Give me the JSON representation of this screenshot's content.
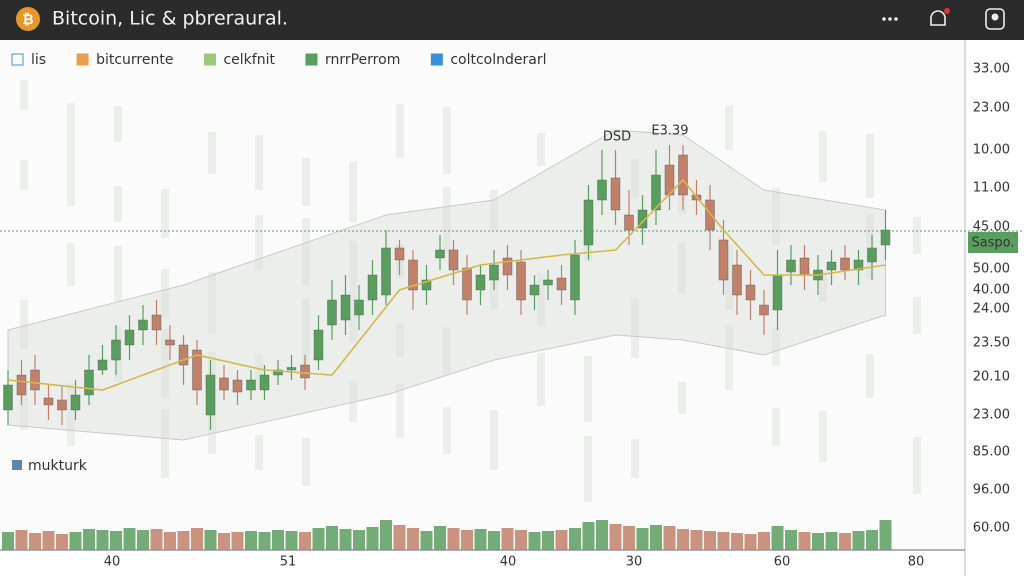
{
  "header": {
    "title": "Bitcoin, Lic & pbreraural."
  },
  "legend": [
    {
      "label": "lis",
      "color": "#4a90c8"
    },
    {
      "label": "bitcurrente",
      "color": "#e8a04a"
    },
    {
      "label": "celkfnit",
      "color": "#9cc87a"
    },
    {
      "label": "rnrrPerrom",
      "color": "#5a9e5f"
    },
    {
      "label": "coltcolnderarl",
      "color": "#3a8fd8"
    }
  ],
  "volume_legend": {
    "label": "mukturk",
    "color": "#5b87b0"
  },
  "price_labels": [
    "33.00",
    "23.00",
    "10.00",
    "11.00",
    "45.00",
    "50.00",
    "40.00",
    "24.00",
    "23.50",
    "20.10",
    "23.00",
    "85.00",
    "96.00",
    "60.00"
  ],
  "time_labels": [
    "40",
    "51",
    "40",
    "30",
    "60",
    "80"
  ],
  "annotations": [
    "DSD",
    "E3.39"
  ],
  "price_tag": "Saspo.",
  "chart_data": {
    "type": "candlestick",
    "ylim": [
      0,
      100
    ],
    "vlim": [
      0,
      40
    ],
    "up_color": "#5a9e5f",
    "down_color": "#c0806a",
    "price_line": 65.8,
    "open": [
      30,
      37,
      38,
      32.4,
      32,
      30,
      33,
      38,
      40,
      43,
      46,
      49,
      44,
      43,
      42,
      29,
      36.4,
      36,
      34,
      34,
      37,
      38,
      39,
      40,
      47,
      48,
      49,
      52,
      53,
      62.4,
      60,
      54,
      60.4,
      62,
      58.4,
      54,
      56,
      60.4,
      59.6,
      53,
      55,
      56.4,
      52,
      63,
      72,
      76.4,
      69,
      66.4,
      70,
      79,
      81,
      73,
      72,
      64,
      59,
      55,
      51,
      50,
      57.6,
      60.4,
      56,
      58,
      60.4,
      58,
      59.6,
      63
    ],
    "high": [
      38,
      40,
      41,
      35,
      35,
      36,
      41,
      43,
      47,
      49,
      51,
      52,
      47,
      45,
      44,
      40,
      39,
      38,
      38,
      39,
      40,
      41,
      41,
      49,
      56,
      57,
      55,
      60,
      66,
      64,
      62,
      59,
      65,
      64,
      61,
      59,
      62,
      63,
      62,
      57,
      58,
      59,
      64,
      75,
      82,
      82,
      74,
      73,
      82,
      83,
      83,
      76,
      75,
      68,
      62,
      58,
      54,
      62,
      63,
      63,
      61,
      62,
      63,
      62,
      65,
      70
    ],
    "low": [
      27,
      31,
      31,
      28,
      27,
      28,
      31,
      37,
      37,
      40,
      43,
      43,
      40,
      35,
      31,
      26,
      32,
      31,
      32,
      32,
      35,
      36,
      34,
      38,
      44,
      45,
      46,
      49,
      51,
      57,
      50,
      51,
      58,
      55,
      49,
      51,
      54,
      54,
      49,
      50,
      52,
      51,
      49,
      60,
      69,
      67,
      63,
      63,
      67,
      70,
      70,
      69,
      62,
      53,
      49,
      48,
      45,
      46,
      55,
      54,
      53,
      55,
      56,
      55,
      56,
      60
    ],
    "close": [
      35,
      33,
      34,
      31,
      30,
      33,
      38,
      40,
      44,
      46,
      48,
      46,
      43,
      39,
      34,
      37,
      34,
      33.6,
      36,
      37,
      38,
      38.5,
      36.4,
      46,
      52,
      53,
      52,
      57,
      62.4,
      60,
      54,
      56,
      62,
      58,
      52,
      57,
      59,
      57,
      52,
      55,
      56,
      54,
      61,
      72,
      76,
      70,
      66,
      70,
      77,
      73,
      73,
      72,
      66,
      56,
      53,
      52,
      49,
      57,
      60,
      57,
      58,
      59.6,
      58,
      60,
      62.4,
      66
    ],
    "volume": [
      18,
      20,
      17,
      19,
      16,
      18,
      21,
      20,
      19,
      22,
      20,
      21,
      18,
      19,
      22,
      20,
      17,
      18,
      19,
      18,
      20,
      19,
      18,
      22,
      24,
      21,
      20,
      23,
      30,
      25,
      22,
      19,
      24,
      22,
      20,
      21,
      19,
      22,
      20,
      18,
      19,
      20,
      22,
      28,
      30,
      26,
      24,
      22,
      25,
      24,
      21,
      20,
      19,
      18,
      17,
      16,
      18,
      24,
      20,
      18,
      17,
      18,
      17,
      19,
      20,
      30
    ],
    "ma": {
      "color": "#d4b84a",
      "x": [
        0,
        7,
        14,
        19,
        24,
        29,
        35,
        41,
        45,
        50,
        53,
        56,
        60,
        65
      ],
      "values": [
        36,
        34,
        41,
        38,
        37,
        54,
        59,
        61,
        62,
        76,
        66,
        57,
        57,
        59
      ]
    },
    "band": {
      "color": "#d8ddd4",
      "x": [
        0,
        13,
        28,
        36,
        45,
        50,
        56,
        65
      ],
      "upper": [
        46,
        55,
        69,
        72,
        86,
        85,
        74,
        70
      ],
      "lower": [
        27,
        24,
        33,
        40,
        45,
        44,
        41,
        49
      ]
    }
  }
}
